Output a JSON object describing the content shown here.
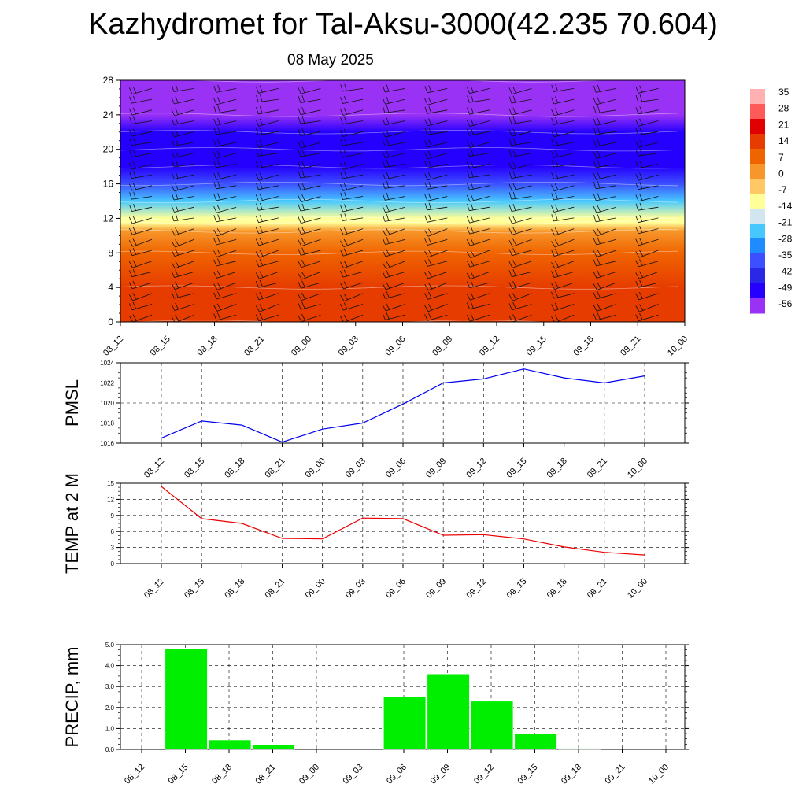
{
  "title": "Kazhydromet for Tal-Aksu-3000(42.235 70.604)",
  "subtitle": "08 May 2025",
  "time_labels": [
    "08_12",
    "08_15",
    "08_18",
    "08_21",
    "09_00",
    "09_03",
    "09_06",
    "09_09",
    "09_12",
    "09_15",
    "09_18",
    "09_21",
    "10_00"
  ],
  "colors": {
    "pmsl_line": "#0000ee",
    "temp_line": "#ee0000",
    "precip_bar": "#00ee00",
    "colorbar_levels": [
      "#ffb0b0",
      "#ff5a5a",
      "#e00000",
      "#e63c00",
      "#f06400",
      "#f7962a",
      "#ffc864",
      "#ffff99",
      "#d2e6f0",
      "#46c8ff",
      "#1e8cff",
      "#3c50ff",
      "#2828e6",
      "#2600ff",
      "#9a32f5"
    ]
  },
  "chart_data": [
    {
      "type": "heatmap",
      "name_hint": "cross-section",
      "y_ticks": [
        0,
        4,
        8,
        12,
        16,
        20,
        24,
        28
      ],
      "ylim": [
        0,
        28
      ],
      "colorbar_ticks": [
        "35",
        "28",
        "21",
        "14",
        "7",
        "0",
        "-7",
        "-14",
        "-21",
        "-28",
        "-35",
        "-42",
        "-49",
        "-56"
      ],
      "colorbar_values": [
        35,
        28,
        21,
        14,
        7,
        0,
        -7,
        -14,
        -21,
        -28,
        -35,
        -42,
        -49,
        -56
      ],
      "profile": [
        {
          "level": 0,
          "value": 14
        },
        {
          "level": 4,
          "value": 8
        },
        {
          "level": 8,
          "value": 2
        },
        {
          "level": 10.5,
          "value": -6
        },
        {
          "level": 11.5,
          "value": -14
        },
        {
          "level": 12,
          "value": -20
        },
        {
          "level": 14,
          "value": -34
        },
        {
          "level": 16,
          "value": -46
        },
        {
          "level": 18,
          "value": -56
        },
        {
          "level": 20,
          "value": -58
        },
        {
          "level": 22,
          "value": -62
        },
        {
          "level": 24,
          "value": -66
        },
        {
          "level": 28,
          "value": -68
        }
      ]
    },
    {
      "type": "line",
      "ylabel": "PMSL",
      "ylim": [
        1016,
        1024
      ],
      "y_ticks": [
        "1016",
        "1018",
        "1020",
        "1022",
        "1024"
      ],
      "values": [
        1016.5,
        1018.2,
        1017.8,
        1016.1,
        1017.4,
        1018.0,
        1019.9,
        1022.0,
        1022.4,
        1023.4,
        1022.5,
        1022.0,
        1022.7
      ]
    },
    {
      "type": "line",
      "ylabel": "TEMP at 2 M",
      "ylim": [
        0,
        15
      ],
      "y_ticks": [
        "0",
        "3",
        "6",
        "9",
        "12",
        "15"
      ],
      "values": [
        14.4,
        8.4,
        7.5,
        4.7,
        4.6,
        8.5,
        8.4,
        5.3,
        5.4,
        4.6,
        3.1,
        2.1,
        1.6
      ]
    },
    {
      "type": "bar",
      "ylabel": "PRECIP, mm",
      "ylim": [
        0,
        5
      ],
      "y_ticks": [
        "0.0",
        "1.0",
        "2.0",
        "3.0",
        "4.0",
        "5.0"
      ],
      "values": [
        0,
        4.8,
        0.45,
        0.2,
        0,
        0,
        2.5,
        3.6,
        2.3,
        0.75,
        0.05,
        0,
        0
      ]
    }
  ]
}
